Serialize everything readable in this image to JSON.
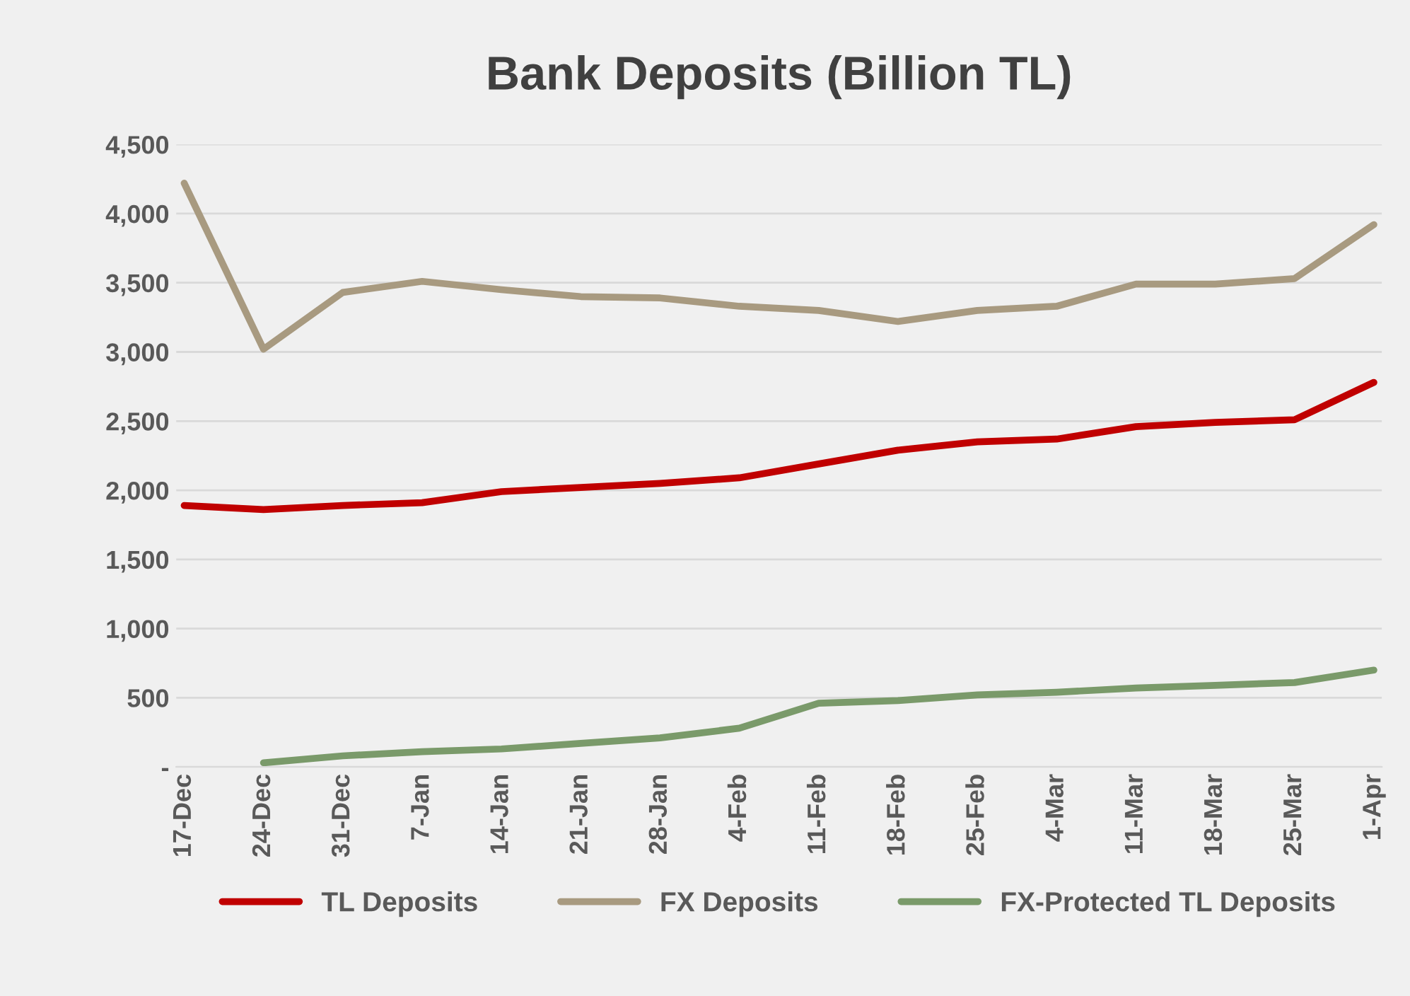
{
  "chart_data": {
    "type": "line",
    "title": "Bank Deposits (Billion TL)",
    "categories": [
      "17-Dec",
      "24-Dec",
      "31-Dec",
      "7-Jan",
      "14-Jan",
      "21-Jan",
      "28-Jan",
      "4-Feb",
      "11-Feb",
      "18-Feb",
      "25-Feb",
      "4-Mar",
      "11-Mar",
      "18-Mar",
      "25-Mar",
      "1-Apr"
    ],
    "series": [
      {
        "name": "TL Deposits",
        "color": "#c00000",
        "values": [
          1890,
          1860,
          1890,
          1910,
          1990,
          2020,
          2050,
          2090,
          2190,
          2290,
          2350,
          2370,
          2460,
          2490,
          2510,
          2780
        ]
      },
      {
        "name": "FX Deposits",
        "color": "#a89a80",
        "values": [
          4220,
          3020,
          3430,
          3510,
          3450,
          3400,
          3390,
          3330,
          3300,
          3220,
          3300,
          3330,
          3490,
          3490,
          3530,
          3920
        ]
      },
      {
        "name": "FX-Protected TL Deposits",
        "color": "#7a9a6a",
        "values": [
          null,
          30,
          80,
          110,
          130,
          170,
          210,
          280,
          460,
          480,
          520,
          540,
          570,
          590,
          610,
          700
        ]
      }
    ],
    "ylim": [
      0,
      4500
    ],
    "yticks": [
      {
        "value": 0,
        "label": "-"
      },
      {
        "value": 500,
        "label": "500"
      },
      {
        "value": 1000,
        "label": "1,000"
      },
      {
        "value": 1500,
        "label": "1,500"
      },
      {
        "value": 2000,
        "label": "2,000"
      },
      {
        "value": 2500,
        "label": "2,500"
      },
      {
        "value": 3000,
        "label": "3,000"
      },
      {
        "value": 3500,
        "label": "3,500"
      },
      {
        "value": 4000,
        "label": "4,000"
      },
      {
        "value": 4500,
        "label": "4,500"
      }
    ],
    "grid": "y",
    "legend": "bottom",
    "line_style": "solid",
    "marker": "none"
  }
}
